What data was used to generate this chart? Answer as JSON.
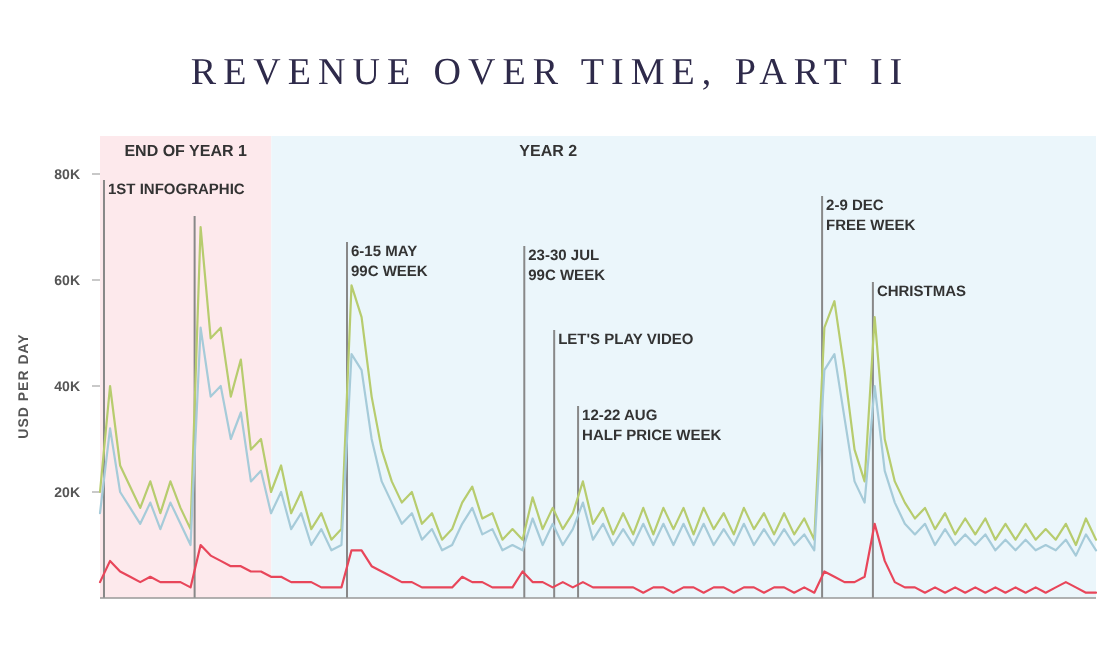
{
  "chart_data": {
    "type": "line",
    "title": "REVENUE OVER TIME, PART II",
    "ylabel": "USD PER DAY",
    "categories": [
      null,
      null,
      null,
      null,
      null,
      null,
      null,
      null,
      null,
      null,
      null,
      null,
      null,
      null,
      null,
      null,
      null,
      null,
      null,
      null,
      null,
      null,
      null,
      null,
      null,
      null,
      null,
      null,
      null,
      null,
      null,
      null,
      null,
      null,
      null,
      null,
      null,
      null,
      null,
      null,
      null,
      null,
      null,
      null,
      null,
      null,
      null,
      null,
      null,
      null,
      null,
      null,
      null,
      null,
      null,
      null,
      null,
      null,
      null,
      null,
      null,
      null,
      null,
      null,
      null,
      null,
      null,
      null,
      null,
      null,
      null,
      null,
      null,
      null,
      null,
      null,
      null,
      null,
      null,
      null,
      null,
      null,
      null,
      null,
      null,
      null,
      null,
      null,
      null,
      null,
      null,
      null,
      null,
      null,
      null,
      null,
      null,
      null,
      null,
      null
    ],
    "ylim": [
      0,
      80
    ],
    "yticks": [
      {
        "value": 20,
        "label": "20K"
      },
      {
        "value": 40,
        "label": "40K"
      },
      {
        "value": 60,
        "label": "60K"
      },
      {
        "value": 80,
        "label": "80K"
      }
    ],
    "tick_labels": "y",
    "marker": "none",
    "line_style": "solid",
    "series": [
      {
        "color": "#b7cc6e",
        "values": [
          20,
          40,
          25,
          21,
          17,
          22,
          16,
          22,
          17,
          13,
          70,
          49,
          51,
          38,
          45,
          28,
          30,
          20,
          25,
          16,
          20,
          13,
          16,
          11,
          13,
          59,
          53,
          38,
          28,
          22,
          18,
          20,
          14,
          16,
          11,
          13,
          18,
          21,
          15,
          16,
          11,
          13,
          11,
          19,
          13,
          17,
          13,
          16,
          22,
          14,
          17,
          12,
          16,
          12,
          17,
          12,
          17,
          13,
          17,
          12,
          17,
          13,
          16,
          12,
          17,
          13,
          16,
          12,
          16,
          12,
          15,
          11,
          51,
          56,
          43,
          28,
          22,
          53,
          30,
          22,
          18,
          15,
          17,
          13,
          16,
          12,
          15,
          12,
          15,
          11,
          14,
          11,
          14,
          11,
          13,
          11,
          14,
          10,
          15,
          11
        ]
      },
      {
        "color": "#a6cbd9",
        "values": [
          16,
          32,
          20,
          17,
          14,
          18,
          13,
          18,
          14,
          10,
          51,
          38,
          40,
          30,
          35,
          22,
          24,
          16,
          20,
          13,
          16,
          10,
          13,
          9,
          10,
          46,
          43,
          30,
          22,
          18,
          14,
          16,
          11,
          13,
          9,
          10,
          14,
          17,
          12,
          13,
          9,
          10,
          9,
          15,
          10,
          14,
          10,
          13,
          18,
          11,
          14,
          10,
          13,
          10,
          14,
          10,
          14,
          10,
          14,
          10,
          14,
          10,
          13,
          10,
          14,
          10,
          13,
          10,
          13,
          10,
          12,
          9,
          43,
          46,
          34,
          22,
          18,
          40,
          24,
          18,
          14,
          12,
          14,
          10,
          13,
          10,
          12,
          10,
          12,
          9,
          11,
          9,
          11,
          9,
          10,
          9,
          11,
          8,
          12,
          9
        ]
      },
      {
        "color": "#e8465a",
        "values": [
          3,
          7,
          5,
          4,
          3,
          4,
          3,
          3,
          3,
          2,
          10,
          8,
          7,
          6,
          6,
          5,
          5,
          4,
          4,
          3,
          3,
          3,
          2,
          2,
          2,
          9,
          9,
          6,
          5,
          4,
          3,
          3,
          2,
          2,
          2,
          2,
          4,
          3,
          3,
          2,
          2,
          2,
          5,
          3,
          3,
          2,
          3,
          2,
          3,
          2,
          2,
          2,
          2,
          2,
          1,
          2,
          2,
          1,
          2,
          2,
          1,
          2,
          2,
          1,
          2,
          2,
          1,
          2,
          2,
          1,
          2,
          1,
          5,
          4,
          3,
          3,
          4,
          14,
          7,
          3,
          2,
          2,
          1,
          2,
          1,
          2,
          1,
          2,
          1,
          2,
          1,
          2,
          1,
          2,
          1,
          2,
          3,
          2,
          1,
          1
        ]
      }
    ],
    "annotations": [
      "END OF YEAR 1",
      "YEAR 2",
      "1ST INFOGRAPHIC",
      "6-15 MAY\n99C WEEK",
      "23-30 JUL\n99C WEEK",
      "LET'S PLAY VIDEO",
      "12-22 AUG\nHALF PRICE WEEK",
      "2-9 DEC\nFREE WEEK",
      "CHRISTMAS"
    ]
  }
}
